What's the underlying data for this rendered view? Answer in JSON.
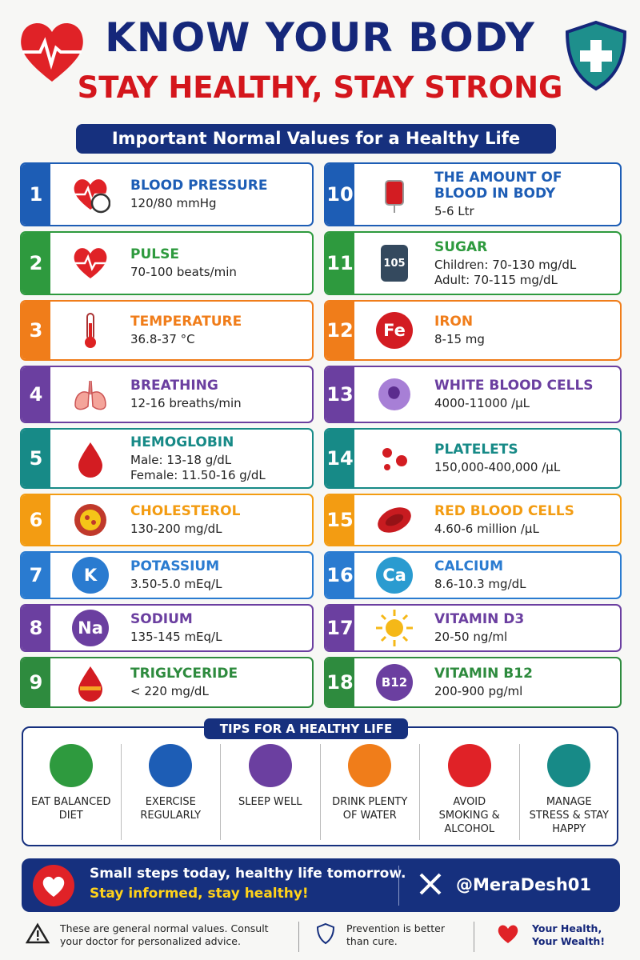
{
  "header": {
    "title": "KNOW YOUR BODY",
    "subtitle": "STAY HEALTHY, STAY STRONG",
    "banner": "Important Normal Values for a Healthy Life"
  },
  "items": [
    {
      "number": 1,
      "title": "BLOOD PRESSURE",
      "values": [
        "120/80 mmHg"
      ]
    },
    {
      "number": 2,
      "title": "PULSE",
      "values": [
        "70-100 beats/min"
      ]
    },
    {
      "number": 3,
      "title": "TEMPERATURE",
      "values": [
        "36.8-37 °C"
      ]
    },
    {
      "number": 4,
      "title": "BREATHING",
      "values": [
        "12-16 breaths/min"
      ]
    },
    {
      "number": 5,
      "title": "HEMOGLOBIN",
      "values": [
        "Male: 13-18 g/dL",
        "Female: 11.50-16 g/dL"
      ]
    },
    {
      "number": 6,
      "title": "CHOLESTEROL",
      "values": [
        "130-200 mg/dL"
      ]
    },
    {
      "number": 7,
      "title": "POTASSIUM",
      "values": [
        "3.50-5.0 mEq/L"
      ],
      "icon_label": "K"
    },
    {
      "number": 8,
      "title": "SODIUM",
      "values": [
        "135-145 mEq/L"
      ],
      "icon_label": "Na"
    },
    {
      "number": 9,
      "title": "TRIGLYCERIDE",
      "values": [
        "< 220 mg/dL"
      ]
    },
    {
      "number": 10,
      "title": "THE AMOUNT OF BLOOD IN BODY",
      "values": [
        "5-6 Ltr"
      ]
    },
    {
      "number": 11,
      "title": "SUGAR",
      "values": [
        "Children: 70-130 mg/dL",
        "Adult: 70-115 mg/dL"
      ],
      "icon_label": "105"
    },
    {
      "number": 12,
      "title": "IRON",
      "values": [
        "8-15 mg"
      ],
      "icon_label": "Fe"
    },
    {
      "number": 13,
      "title": "WHITE BLOOD CELLS",
      "values": [
        "4000-11000 /µL"
      ]
    },
    {
      "number": 14,
      "title": "PLATELETS",
      "values": [
        "150,000-400,000 /µL"
      ]
    },
    {
      "number": 15,
      "title": "RED BLOOD CELLS",
      "values": [
        "4.60-6 million /µL"
      ]
    },
    {
      "number": 16,
      "title": "CALCIUM",
      "values": [
        "8.6-10.3 mg/dL"
      ],
      "icon_label": "Ca"
    },
    {
      "number": 17,
      "title": "VITAMIN D3",
      "values": [
        "20-50 ng/ml"
      ]
    },
    {
      "number": 18,
      "title": "VITAMIN B12",
      "values": [
        "200-900 pg/ml"
      ],
      "icon_label": "B12"
    }
  ],
  "tips": {
    "title": "TIPS FOR A HEALTHY LIFE",
    "items": [
      "EAT BALANCED DIET",
      "EXERCISE REGULARLY",
      "SLEEP WELL",
      "DRINK PLENTY OF WATER",
      "AVOID SMOKING & ALCOHOL",
      "MANAGE STRESS & STAY HAPPY"
    ]
  },
  "footer": {
    "line1": "Small steps today, healthy life tomorrow.",
    "line2": "Stay informed, stay healthy!",
    "handle": "@MeraDesh01"
  },
  "notes": [
    "These are general normal values. Consult your doctor for personalized advice.",
    "Prevention is better than cure.",
    "Your Health, Your Wealth!"
  ]
}
